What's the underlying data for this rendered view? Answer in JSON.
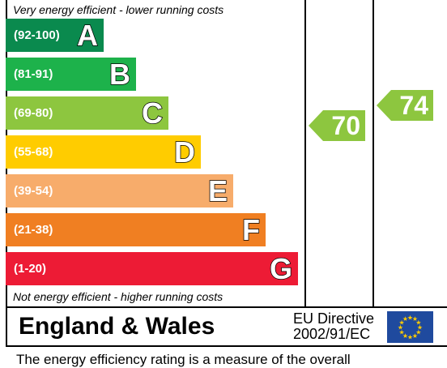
{
  "chart_data": {
    "type": "bar",
    "top_note": "Very energy efficient - lower running costs",
    "bottom_note": "Not energy efficient - higher running costs",
    "bands": [
      {
        "range": "(92-100)",
        "letter": "A",
        "color": "#0a8a4e"
      },
      {
        "range": "(81-91)",
        "letter": "B",
        "color": "#1db24b"
      },
      {
        "range": "(69-80)",
        "letter": "C",
        "color": "#8dc63f"
      },
      {
        "range": "(55-68)",
        "letter": "D",
        "color": "#ffcc00"
      },
      {
        "range": "(39-54)",
        "letter": "E",
        "color": "#f7ac6b"
      },
      {
        "range": "(21-38)",
        "letter": "F",
        "color": "#f07f22"
      },
      {
        "range": "(1-20)",
        "letter": "G",
        "color": "#ed1b35"
      }
    ],
    "current": {
      "value": 70,
      "color": "#8dc63f"
    },
    "potential": {
      "value": 74,
      "color": "#8dc63f"
    }
  },
  "footer": {
    "country": "England & Wales",
    "directive_line1": "EU Directive",
    "directive_line2": "2002/91/EC"
  },
  "bottom_text": "The energy efficiency rating is a measure of the overall"
}
